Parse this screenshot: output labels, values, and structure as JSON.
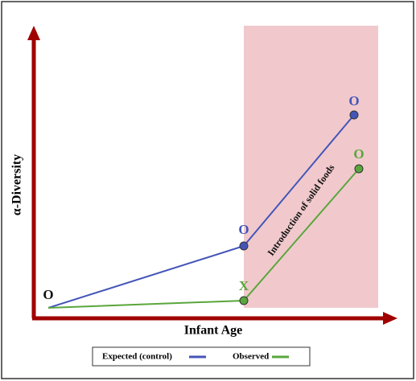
{
  "axes": {
    "x_label": "Infant Age",
    "y_label": "α-Diversity"
  },
  "region": {
    "label": "Introduction of solid foods",
    "color": "#f1c9cd"
  },
  "origin": {
    "label": "O"
  },
  "lines": [
    {
      "name": "Expected (control)",
      "color": "#4455b8",
      "points": [
        {
          "label": "O"
        },
        {
          "label": "O"
        }
      ]
    },
    {
      "name": "Observed",
      "color": "#5aa63c",
      "points": [
        {
          "label": "X"
        },
        {
          "label": "O"
        }
      ]
    }
  ]
}
